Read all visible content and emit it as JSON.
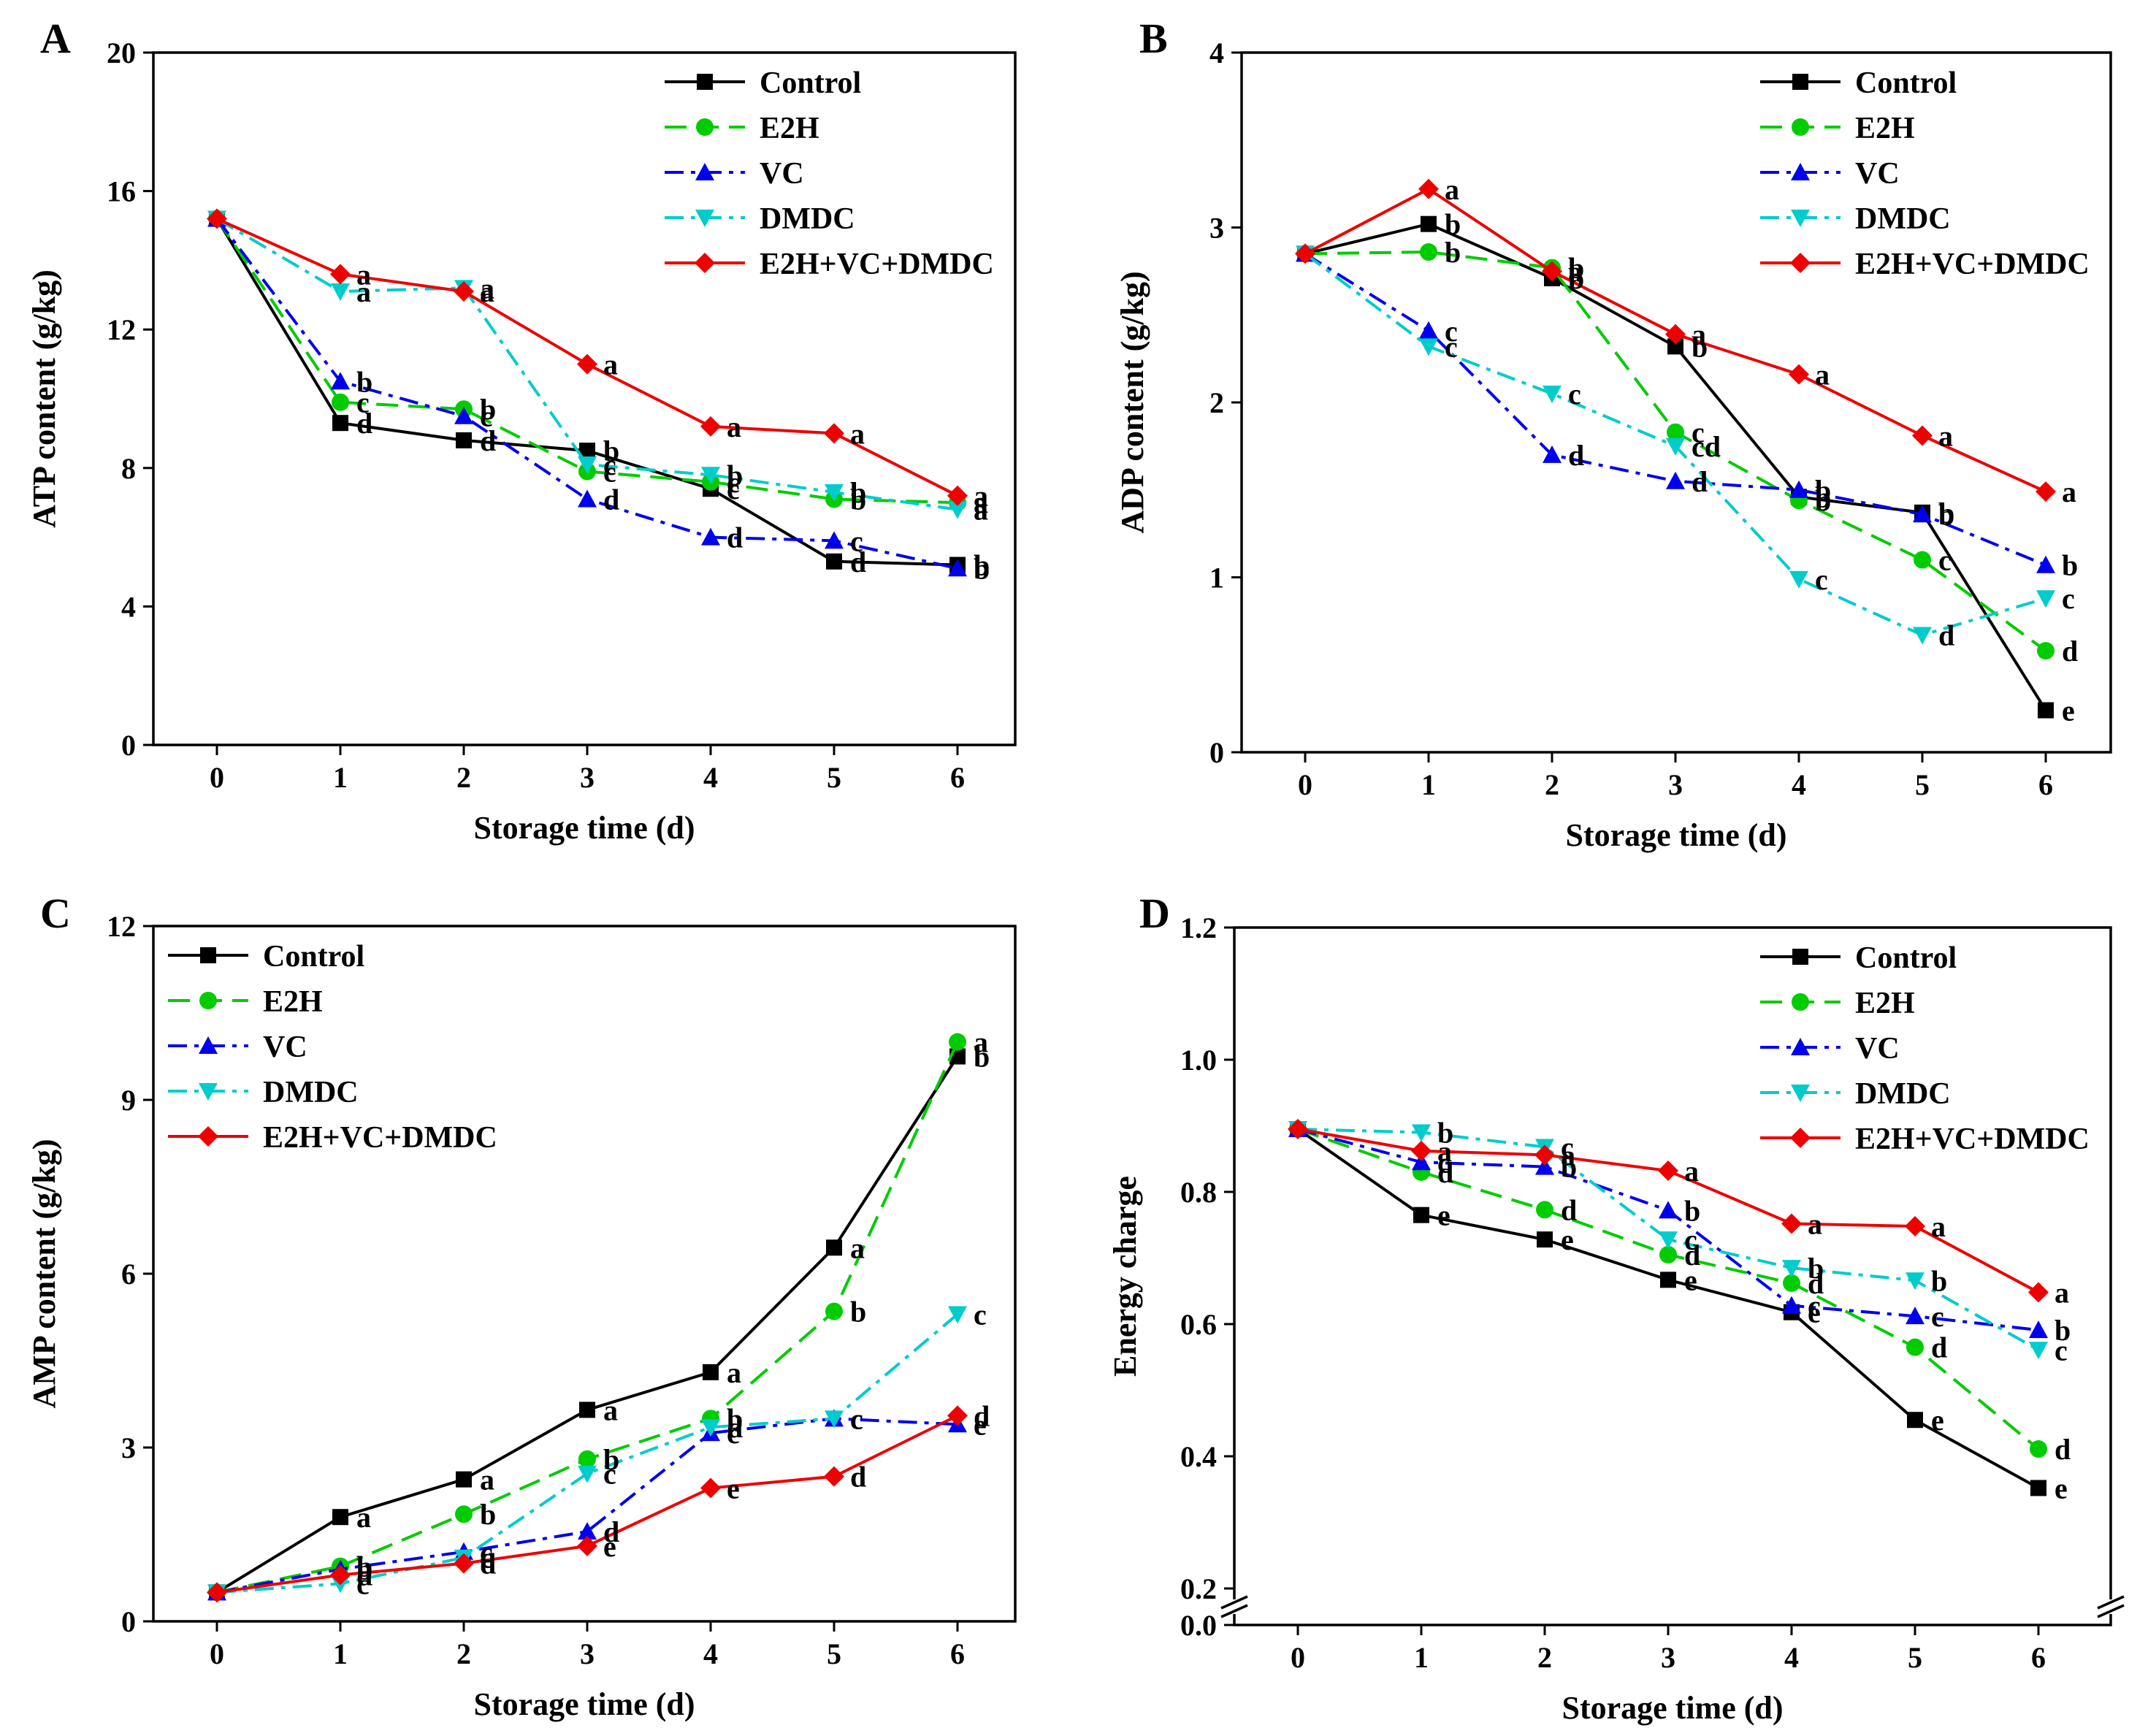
{
  "legend_series": [
    "Control",
    "E2H",
    "VC",
    "DMDC",
    "E2H+VC+DMDC"
  ],
  "series_styles": {
    "Control": {
      "color": "#000000",
      "dash": "",
      "marker": "square"
    },
    "E2H": {
      "color": "#00cc00",
      "dash": "30,14",
      "marker": "circle"
    },
    "VC": {
      "color": "#0000ee",
      "dash": "26,10,6,10",
      "marker": "triangle-up"
    },
    "DMDC": {
      "color": "#00cccc",
      "dash": "26,10,6,10",
      "marker": "triangle-down"
    },
    "E2H+VC+DMDC": {
      "color": "#ee0000",
      "dash": "",
      "marker": "diamond"
    }
  },
  "chart_data": [
    {
      "panel": "A",
      "type": "line",
      "xlabel": "Storage time (d)",
      "ylabel": "ATP content (g/kg)",
      "x": [
        0,
        1,
        2,
        3,
        4,
        5,
        6
      ],
      "xticks": [
        "0",
        "1",
        "2",
        "3",
        "4",
        "5",
        "6"
      ],
      "ylim": [
        0,
        20
      ],
      "yticks": [
        0,
        4,
        8,
        12,
        16,
        20
      ],
      "yticklabels": [
        "0",
        "4",
        "8",
        "12",
        "16",
        "20"
      ],
      "legend_position": "top-right",
      "series": [
        {
          "name": "Control",
          "values": [
            15.2,
            9.3,
            8.8,
            8.5,
            7.4,
            5.3,
            5.2
          ],
          "letters": [
            null,
            "d",
            "d",
            "b",
            "c",
            "d",
            "b"
          ]
        },
        {
          "name": "E2H",
          "values": [
            15.2,
            9.9,
            9.7,
            7.9,
            7.6,
            7.1,
            7.0
          ],
          "letters": [
            null,
            "c",
            "b",
            "c",
            "c",
            "b",
            "a"
          ]
        },
        {
          "name": "VC",
          "values": [
            15.2,
            10.5,
            9.5,
            7.1,
            6.0,
            5.9,
            5.1
          ],
          "letters": [
            null,
            "b",
            "c",
            "d",
            "d",
            "c",
            "b"
          ]
        },
        {
          "name": "DMDC",
          "values": [
            15.2,
            13.1,
            13.2,
            8.1,
            7.8,
            7.3,
            6.8
          ],
          "letters": [
            null,
            "a",
            "a",
            "c",
            "b",
            "b",
            "a"
          ]
        },
        {
          "name": "E2H+VC+DMDC",
          "values": [
            15.2,
            13.6,
            13.1,
            11.0,
            9.2,
            9.0,
            7.2
          ],
          "letters": [
            null,
            "a",
            "a",
            "a",
            "a",
            "a",
            "a"
          ]
        }
      ]
    },
    {
      "panel": "B",
      "type": "line",
      "xlabel": "Storage time (d)",
      "ylabel": "ADP content (g/kg)",
      "x": [
        0,
        1,
        2,
        3,
        4,
        5,
        6
      ],
      "xticks": [
        "0",
        "1",
        "2",
        "3",
        "4",
        "5",
        "6"
      ],
      "ylim": [
        0,
        4
      ],
      "yticks": [
        0,
        1,
        2,
        3,
        4
      ],
      "yticklabels": [
        "0",
        "1",
        "2",
        "3",
        "4"
      ],
      "legend_position": "top-right",
      "series": [
        {
          "name": "Control",
          "values": [
            2.85,
            3.02,
            2.71,
            2.32,
            1.46,
            1.37,
            0.24
          ],
          "letters": [
            null,
            "b",
            "b",
            "b",
            "b",
            "b",
            "e"
          ]
        },
        {
          "name": "E2H",
          "values": [
            2.85,
            2.86,
            2.77,
            1.83,
            1.44,
            1.1,
            0.58
          ],
          "letters": [
            null,
            "b",
            "b",
            "c",
            "b",
            "c",
            "d"
          ]
        },
        {
          "name": "VC",
          "values": [
            2.85,
            2.41,
            1.7,
            1.55,
            1.5,
            1.36,
            1.07
          ],
          "letters": [
            null,
            "c",
            "d",
            "d",
            "b",
            "b",
            "b"
          ]
        },
        {
          "name": "DMDC",
          "values": [
            2.85,
            2.32,
            2.05,
            1.75,
            0.99,
            0.67,
            0.88
          ],
          "letters": [
            null,
            "c",
            "c",
            "cd",
            "c",
            "d",
            "c"
          ]
        },
        {
          "name": "E2H+VC+DMDC",
          "values": [
            2.85,
            3.22,
            2.75,
            2.39,
            2.16,
            1.81,
            1.49
          ],
          "letters": [
            null,
            "a",
            "a",
            "a",
            "a",
            "a",
            "a"
          ]
        }
      ]
    },
    {
      "panel": "C",
      "type": "line",
      "xlabel": "Storage time (d)",
      "ylabel": "AMP content (g/kg)",
      "x": [
        0,
        1,
        2,
        3,
        4,
        5,
        6
      ],
      "xticks": [
        "0",
        "1",
        "2",
        "3",
        "4",
        "5",
        "6"
      ],
      "ylim": [
        0,
        12
      ],
      "yticks": [
        0,
        3,
        6,
        9,
        12
      ],
      "yticklabels": [
        "0",
        "3",
        "6",
        "9",
        "12"
      ],
      "legend_position": "top-left",
      "series": [
        {
          "name": "Control",
          "values": [
            0.5,
            1.8,
            2.45,
            3.65,
            4.3,
            6.45,
            9.75
          ],
          "letters": [
            null,
            "a",
            "a",
            "a",
            "a",
            "a",
            "b"
          ]
        },
        {
          "name": "E2H",
          "values": [
            0.5,
            0.95,
            1.85,
            2.8,
            3.5,
            5.35,
            10.0
          ],
          "letters": [
            null,
            "b",
            "b",
            "b",
            "b",
            "b",
            "a"
          ]
        },
        {
          "name": "VC",
          "values": [
            0.5,
            0.9,
            1.2,
            1.55,
            3.25,
            3.5,
            3.4
          ],
          "letters": [
            null,
            "b",
            "c",
            "d",
            "c",
            "c",
            "e"
          ]
        },
        {
          "name": "DMDC",
          "values": [
            0.5,
            0.65,
            1.1,
            2.55,
            3.35,
            3.5,
            5.3
          ],
          "letters": [
            null,
            "c",
            "c",
            "c",
            "d",
            "c",
            "c"
          ]
        },
        {
          "name": "E2H+VC+DMDC",
          "values": [
            0.5,
            0.8,
            1.0,
            1.3,
            2.3,
            2.5,
            3.55
          ],
          "letters": [
            null,
            "d",
            "d",
            "e",
            "e",
            "d",
            "d"
          ]
        }
      ]
    },
    {
      "panel": "D",
      "type": "line",
      "xlabel": "Storage time (d)",
      "ylabel": "Energy charge",
      "x": [
        0,
        1,
        2,
        3,
        4,
        5,
        6
      ],
      "xticks": [
        "0",
        "1",
        "2",
        "3",
        "4",
        "5",
        "6"
      ],
      "ylim": [
        0.0,
        1.2
      ],
      "axis_break": [
        0.0,
        0.2
      ],
      "yticks": [
        0.0,
        0.2,
        0.4,
        0.6,
        0.8,
        1.0,
        1.2
      ],
      "yticklabels": [
        "0.0",
        "0.2",
        "0.4",
        "0.6",
        "0.8",
        "1.0",
        "1.2"
      ],
      "legend_position": "top-right",
      "series": [
        {
          "name": "Control",
          "values": [
            0.895,
            0.765,
            0.728,
            0.667,
            0.618,
            0.455,
            0.352
          ],
          "letters": [
            null,
            "e",
            "e",
            "e",
            "e",
            "e",
            "e"
          ]
        },
        {
          "name": "E2H",
          "values": [
            0.895,
            0.83,
            0.773,
            0.705,
            0.662,
            0.565,
            0.411
          ],
          "letters": [
            null,
            "d",
            "d",
            "d",
            "d",
            "d",
            "d"
          ]
        },
        {
          "name": "VC",
          "values": [
            0.895,
            0.845,
            0.838,
            0.772,
            0.628,
            0.612,
            0.591
          ],
          "letters": [
            null,
            "c",
            "b",
            "b",
            "c",
            "c",
            "b"
          ]
        },
        {
          "name": "DMDC",
          "values": [
            0.895,
            0.89,
            0.868,
            0.728,
            0.685,
            0.666,
            0.561
          ],
          "letters": [
            null,
            "b",
            "c",
            "c",
            "b",
            "b",
            "c"
          ]
        },
        {
          "name": "E2H+VC+DMDC",
          "values": [
            0.895,
            0.862,
            0.856,
            0.832,
            0.752,
            0.748,
            0.648
          ],
          "letters": [
            null,
            "a",
            "a",
            "a",
            "a",
            "a",
            "a"
          ]
        }
      ]
    }
  ]
}
